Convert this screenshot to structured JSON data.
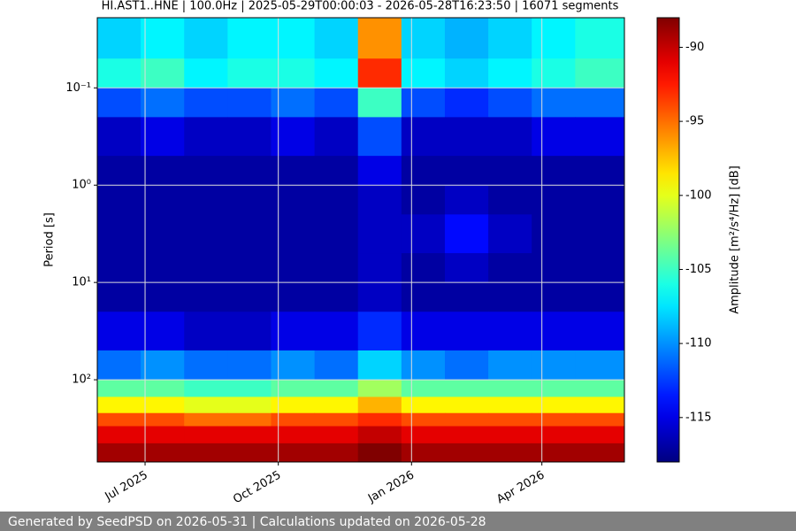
{
  "chart_data": {
    "type": "heatmap",
    "title": "HI.AST1..HNE | 100.0Hz | 2025-05-29T00:00:03 - 2026-05-28T16:23:50 | 16071 segments",
    "y_label": "Period [s]",
    "x_edges": [
      "2025-05-29",
      "2025-06-28",
      "2025-07-28",
      "2025-08-27",
      "2025-09-26",
      "2025-10-26",
      "2025-11-25",
      "2025-12-25",
      "2026-01-24",
      "2026-02-23",
      "2026-03-25",
      "2026-04-24",
      "2026-05-28"
    ],
    "y_edges": [
      0.019,
      0.05,
      0.1,
      0.2,
      0.5,
      1,
      2,
      5,
      10,
      20,
      50,
      100,
      150,
      220,
      300,
      450,
      700
    ],
    "values": [
      [
        -108,
        -107,
        -108,
        -107,
        -107,
        -108,
        -96,
        -108,
        -109,
        -108,
        -107,
        -106
      ],
      [
        -106,
        -105,
        -107,
        -106,
        -106,
        -107,
        -93,
        -107,
        -108,
        -107,
        -106,
        -105
      ],
      [
        -112,
        -111,
        -112,
        -112,
        -111,
        -112,
        -105,
        -112,
        -113,
        -112,
        -111,
        -111
      ],
      [
        -116,
        -115,
        -116,
        -116,
        -115,
        -116,
        -112,
        -116,
        -116,
        -116,
        -115,
        -115
      ],
      [
        -117,
        -117,
        -117,
        -117,
        -117,
        -117,
        -115,
        -117,
        -117,
        -117,
        -117,
        -117
      ],
      [
        -117,
        -117,
        -117,
        -117,
        -117,
        -117,
        -116,
        -117,
        -116,
        -117,
        -117,
        -117
      ],
      [
        -117,
        -117,
        -117,
        -117,
        -117,
        -117,
        -116,
        -116,
        -114,
        -116,
        -117,
        -117
      ],
      [
        -117,
        -117,
        -117,
        -117,
        -117,
        -117,
        -116,
        -117,
        -116,
        -117,
        -117,
        -117
      ],
      [
        -117,
        -117,
        -117,
        -117,
        -117,
        -117,
        -116,
        -117,
        -117,
        -117,
        -117,
        -117
      ],
      [
        -115,
        -115,
        -116,
        -116,
        -115,
        -115,
        -113,
        -115,
        -115,
        -115,
        -115,
        -115
      ],
      [
        -111,
        -110,
        -111,
        -111,
        -110,
        -111,
        -108,
        -110,
        -111,
        -110,
        -110,
        -110
      ],
      [
        -104,
        -104,
        -105,
        -105,
        -104,
        -104,
        -102,
        -104,
        -104,
        -104,
        -104,
        -104
      ],
      [
        -99,
        -99,
        -100,
        -100,
        -99,
        -99,
        -97,
        -99,
        -99,
        -99,
        -99,
        -99
      ],
      [
        -94,
        -94,
        -95,
        -95,
        -94,
        -94,
        -93,
        -94,
        -94,
        -94,
        -94,
        -94
      ],
      [
        -91,
        -91,
        -91,
        -91,
        -91,
        -91,
        -90,
        -91,
        -91,
        -91,
        -91,
        -91
      ],
      [
        -89,
        -89,
        -89,
        -89,
        -89,
        -89,
        -88,
        -89,
        -89,
        -89,
        -89,
        -89
      ]
    ],
    "xlim": [
      "2025-05-29",
      "2026-05-28"
    ],
    "xticks": [
      {
        "value": "2025-07-01",
        "label": "Jul 2025"
      },
      {
        "value": "2025-10-01",
        "label": "Oct 2025"
      },
      {
        "value": "2026-01-01",
        "label": "Jan 2026"
      },
      {
        "value": "2026-04-01",
        "label": "Apr 2026"
      }
    ],
    "ylim": [
      0.019,
      700
    ],
    "y_scale": "log",
    "y_inverted": true,
    "yticks": [
      {
        "value": 0.1,
        "label": "10⁻¹"
      },
      {
        "value": 1,
        "label": "10⁰"
      },
      {
        "value": 10,
        "label": "10¹"
      },
      {
        "value": 100,
        "label": "10²"
      }
    ],
    "grid": true,
    "colormap": "jet",
    "colorbar": {
      "label": "Amplitude [m²/s⁴/Hz] [dB]",
      "lim": [
        -118,
        -88
      ],
      "ticks": [
        -90,
        -95,
        -100,
        -105,
        -110,
        -115
      ]
    },
    "footer": "Generated by SeedPSD on 2026-05-31 | Calculations updated on 2026-05-28"
  }
}
